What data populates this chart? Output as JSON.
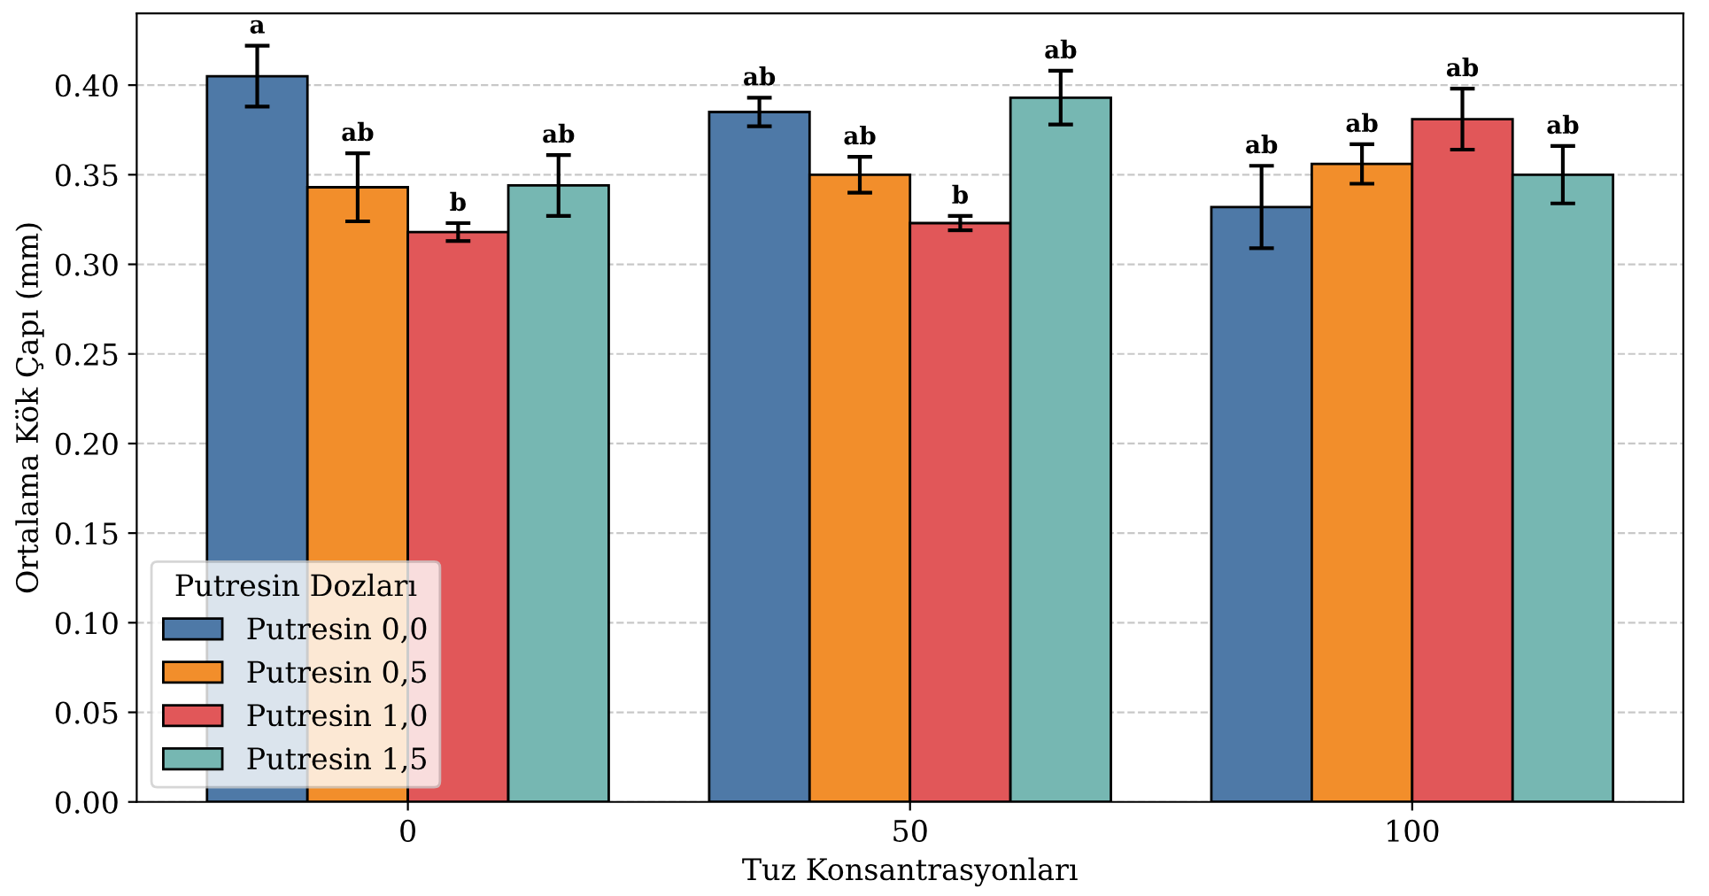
{
  "chart_data": {
    "type": "bar",
    "xlabel": "Tuz Konsantrasyonları",
    "ylabel": "Ortalama Kök Çapı (mm)",
    "legend_title": "Putresin Dozları",
    "categories": [
      "0",
      "50",
      "100"
    ],
    "series": [
      {
        "name": "Putresin 0,0",
        "color": "#4e79a7",
        "values": [
          0.405,
          0.385,
          0.332
        ],
        "errors": [
          0.017,
          0.008,
          0.023
        ],
        "value_labels": [
          "a",
          "ab",
          "ab"
        ]
      },
      {
        "name": "Putresin 0,5",
        "color": "#f28e2b",
        "values": [
          0.343,
          0.35,
          0.356
        ],
        "errors": [
          0.019,
          0.01,
          0.011
        ],
        "value_labels": [
          "ab",
          "ab",
          "ab"
        ]
      },
      {
        "name": "Putresin 1,0",
        "color": "#e15759",
        "values": [
          0.318,
          0.323,
          0.381
        ],
        "errors": [
          0.005,
          0.004,
          0.017
        ],
        "value_labels": [
          "b",
          "b",
          "ab"
        ]
      },
      {
        "name": "Putresin 1,5",
        "color": "#76b7b2",
        "values": [
          0.344,
          0.393,
          0.35
        ],
        "errors": [
          0.017,
          0.015,
          0.016
        ],
        "value_labels": [
          "ab",
          "ab",
          "ab"
        ]
      }
    ],
    "ylim": [
      0,
      0.44
    ],
    "yticks": [
      {
        "value": 0,
        "label": "0.00"
      },
      {
        "value": 0.05,
        "label": "0.05"
      },
      {
        "value": 0.1,
        "label": "0.10"
      },
      {
        "value": 0.15,
        "label": "0.15"
      },
      {
        "value": 0.2,
        "label": "0.20"
      },
      {
        "value": 0.25,
        "label": "0.25"
      },
      {
        "value": 0.3,
        "label": "0.30"
      },
      {
        "value": 0.35,
        "label": "0.35"
      },
      {
        "value": 0.4,
        "label": "0.40"
      }
    ],
    "grid": "y",
    "line_style": "dashed",
    "legend": "bottom left"
  }
}
